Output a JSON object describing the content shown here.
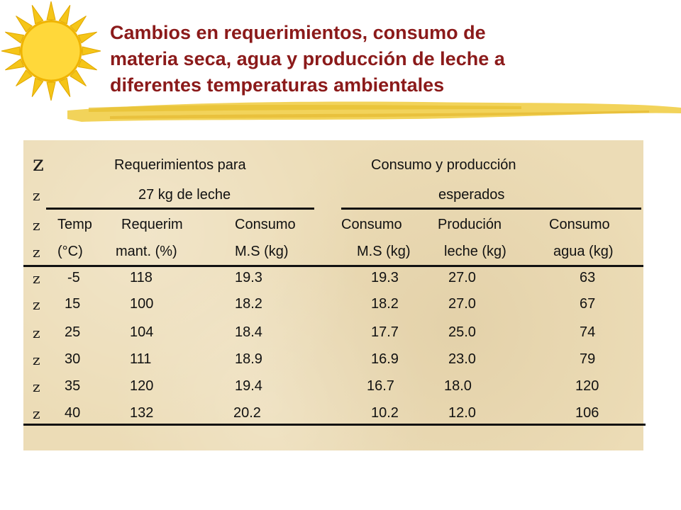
{
  "title": {
    "line1": "Cambios   en   requerimientos,   consumo   de",
    "line2": "materia seca,  agua y producción de leche a",
    "line3": "diferentes temperaturas ambientales"
  },
  "bullet": "z",
  "table": {
    "group1": "Requerimientos para",
    "group2": "Consumo y producción",
    "group1b": "27 kg de leche",
    "group2b": "esperados",
    "headers1": [
      "Temp",
      "Requerim",
      "Consumo",
      "Consumo",
      "Produción",
      "Consumo"
    ],
    "headers2": [
      "(°C)",
      "mant. (%)",
      "M.S (kg)",
      "M.S (kg)",
      "leche (kg)",
      "agua (kg)"
    ],
    "rows": [
      [
        "-5",
        "118",
        "19.3",
        "19.3",
        "27.0",
        "63"
      ],
      [
        "15",
        "100",
        "18.2",
        "18.2",
        "27.0",
        "67"
      ],
      [
        "25",
        "104",
        "18.4",
        "17.7",
        "25.0",
        "74"
      ],
      [
        "30",
        "111",
        "18.9",
        "16.9",
        "23.0",
        "79"
      ],
      [
        "35",
        "120",
        "19.4",
        "16.7",
        "18.0",
        "120"
      ],
      [
        "40",
        "132",
        "20.2",
        "10.2",
        "12.0",
        "106"
      ]
    ]
  }
}
